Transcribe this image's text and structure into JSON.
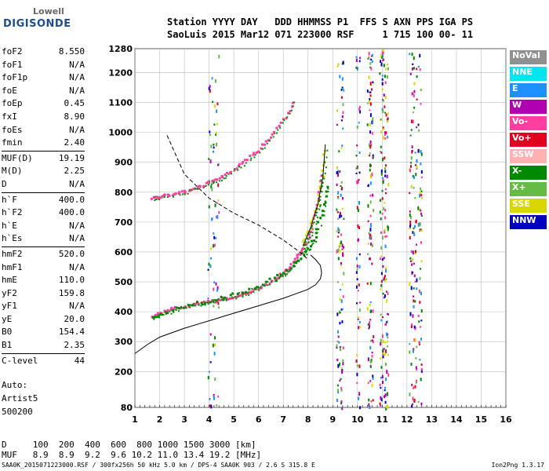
{
  "logo": {
    "brand": "Lowell",
    "product": "DIGISONDE"
  },
  "header": {
    "line1": "Station YYYY DAY   DDD HHMMSS P1  FFS S AXN PPS IGA PS",
    "line2": "SaoLuis 2015 Mar12 071 223000 RSF     1 715 100 00- 11"
  },
  "params_group1": [
    {
      "name": "foF2",
      "value": "8.550"
    },
    {
      "name": "foF1",
      "value": "N/A"
    },
    {
      "name": "foF1p",
      "value": "N/A"
    },
    {
      "name": "foE",
      "value": "N/A"
    },
    {
      "name": "foEp",
      "value": "0.45"
    },
    {
      "name": "fxI",
      "value": "8.90"
    },
    {
      "name": "foEs",
      "value": "N/A"
    },
    {
      "name": "fmin",
      "value": "2.40"
    }
  ],
  "params_group2": [
    {
      "name": "MUF(D)",
      "value": "19.19"
    },
    {
      "name": "M(D)",
      "value": "2.25"
    },
    {
      "name": "D",
      "value": "N/A"
    }
  ],
  "params_group3": [
    {
      "name": "h`F",
      "value": "400.0"
    },
    {
      "name": "h`F2",
      "value": "400.0"
    },
    {
      "name": "h`E",
      "value": "N/A"
    },
    {
      "name": "h`Es",
      "value": "N/A"
    }
  ],
  "params_group4": [
    {
      "name": "hmF2",
      "value": "520.0"
    },
    {
      "name": "hmF1",
      "value": "N/A"
    },
    {
      "name": "hmE",
      "value": "110.0"
    },
    {
      "name": "yF2",
      "value": "159.8"
    },
    {
      "name": "yF1",
      "value": "N/A"
    },
    {
      "name": "yE",
      "value": "20.0"
    },
    {
      "name": "B0",
      "value": "154.4"
    },
    {
      "name": "B1",
      "value": "2.35"
    }
  ],
  "params_group5": [
    {
      "name": "C-level",
      "value": "44"
    }
  ],
  "auto": {
    "line1": "Auto:",
    "line2": "Artist5",
    "line3": "500200"
  },
  "legend": [
    {
      "label": "NoVal",
      "color": "#909090"
    },
    {
      "label": "NNE",
      "color": "#00e5ee"
    },
    {
      "label": "E",
      "color": "#1e90ff"
    },
    {
      "label": "W",
      "color": "#b000b0"
    },
    {
      "label": "Vo-",
      "color": "#ff3fa0"
    },
    {
      "label": "Vo+",
      "color": "#e00020"
    },
    {
      "label": "SSW",
      "color": "#ffb0b0"
    },
    {
      "label": "X-",
      "color": "#008800"
    },
    {
      "label": "X+",
      "color": "#66bb44"
    },
    {
      "label": "SSE",
      "color": "#d8d800"
    },
    {
      "label": "NNW",
      "color": "#0000c0"
    }
  ],
  "dtable": {
    "row1": "D     100  200  400  600  800 1000 1500 3000 [km]",
    "row2": "MUF   8.9  8.9  9.2  9.6 10.2 11.0 13.4 19.2 [MHz]"
  },
  "footer": {
    "left": "SAA0K_2015071223000.RSF / 300fx256h 50 kHz 5.0 km / DPS-4 SAA0K 903 / 2.6 S 315.8 E",
    "right": "Ion2Png 1.3.17"
  },
  "chart_data": {
    "type": "scatter",
    "xlim": [
      1,
      16
    ],
    "ylim": [
      80,
      1280
    ],
    "xticks": [
      1,
      2,
      3,
      4,
      5,
      6,
      7,
      8,
      9,
      10,
      11,
      12,
      13,
      14,
      15,
      16
    ],
    "yticks": [
      80,
      200,
      300,
      400,
      500,
      600,
      700,
      800,
      900,
      1000,
      1100,
      1200,
      1280
    ],
    "grid": true,
    "series": [
      {
        "name": "O-trace",
        "x": [
          1.7,
          2.0,
          2.5,
          3.0,
          3.5,
          4.0,
          4.5,
          5.0,
          5.5,
          6.0,
          6.5,
          7.0,
          7.3,
          7.6,
          7.9,
          8.2,
          8.4,
          8.55
        ],
        "y": [
          380,
          395,
          408,
          418,
          425,
          432,
          440,
          450,
          462,
          478,
          500,
          528,
          550,
          585,
          620,
          680,
          760,
          880
        ]
      },
      {
        "name": "X-trace",
        "x": [
          1.7,
          2.5,
          3.5,
          4.5,
          5.5,
          6.5,
          7.3,
          7.9,
          8.3,
          8.6,
          8.8
        ],
        "y": [
          378,
          405,
          428,
          445,
          470,
          505,
          545,
          595,
          650,
          740,
          830
        ]
      },
      {
        "name": "2F-trace",
        "x": [
          1.7,
          2.0,
          2.5,
          3.0,
          3.5,
          4.0,
          4.5,
          5.0,
          5.5,
          6.0,
          6.5,
          7.0,
          7.5
        ],
        "y": [
          780,
          785,
          790,
          800,
          815,
          830,
          850,
          875,
          905,
          940,
          985,
          1040,
          1110
        ]
      },
      {
        "name": "profile",
        "x": [
          1.0,
          1.5,
          2.0,
          3.0,
          4.0,
          5.0,
          6.0,
          7.0,
          7.5,
          8.0,
          8.3,
          8.5,
          8.55,
          8.5,
          8.3,
          8.1
        ],
        "y": [
          260,
          290,
          315,
          345,
          370,
          395,
          420,
          445,
          460,
          475,
          490,
          510,
          530,
          555,
          575,
          590
        ]
      },
      {
        "name": "MUF-curve",
        "x": [
          2.3,
          3.0,
          4.0,
          5.0,
          6.0,
          7.0,
          7.5,
          7.8,
          8.0
        ],
        "y": [
          990,
          860,
          780,
          730,
          690,
          640,
          610,
          590,
          575
        ]
      },
      {
        "name": "2F-tip",
        "x": [
          7.8,
          8.1,
          8.4,
          8.6,
          8.7
        ],
        "y": [
          620,
          680,
          760,
          850,
          960
        ]
      }
    ]
  }
}
